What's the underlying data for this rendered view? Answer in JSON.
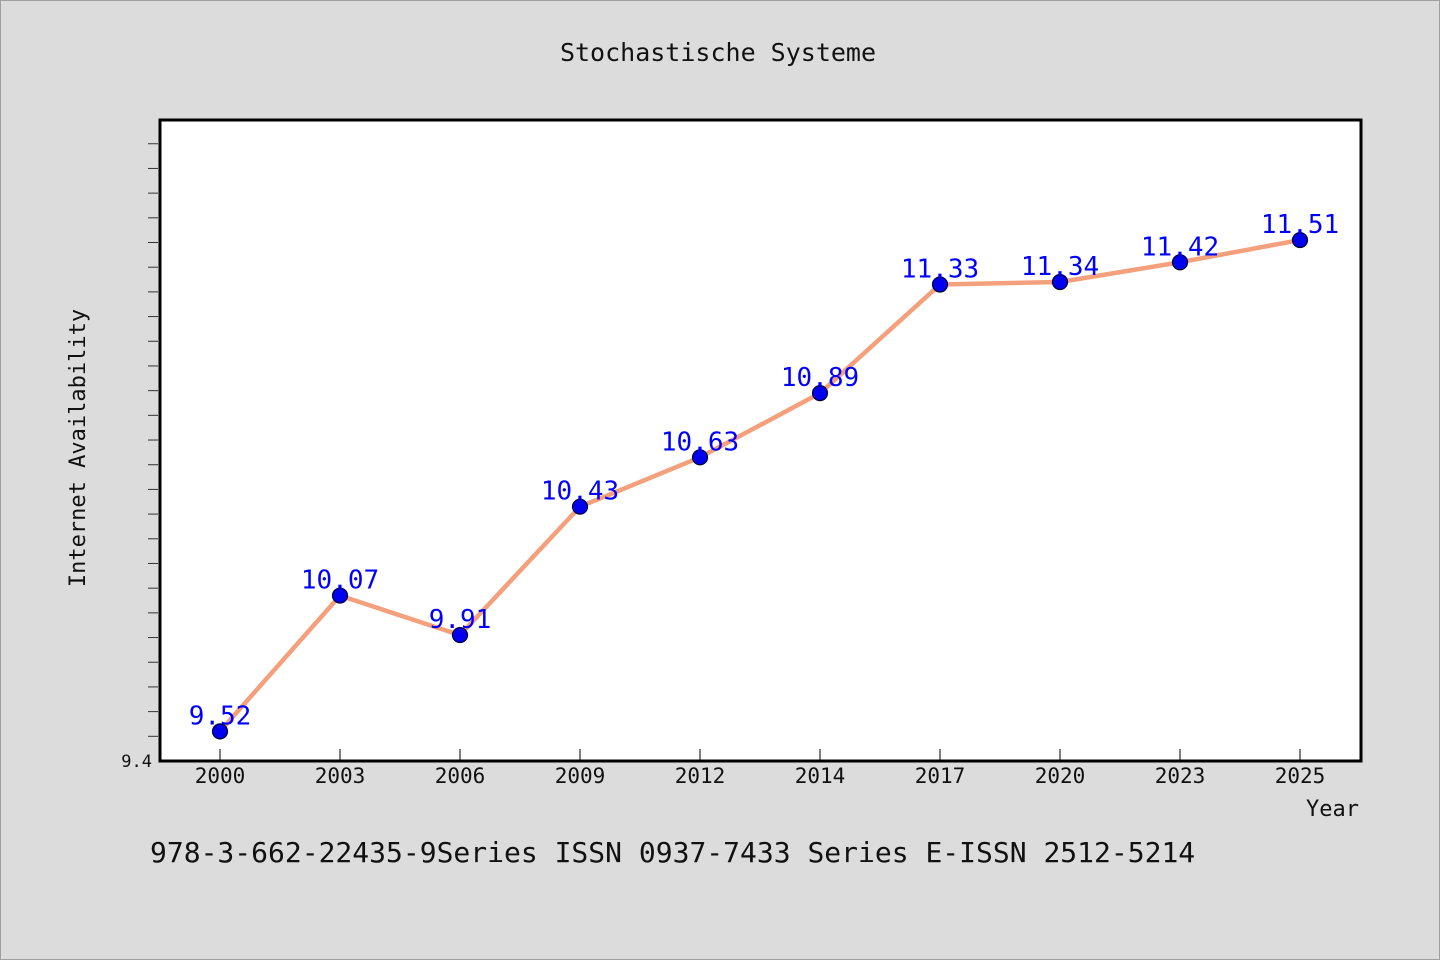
{
  "chart_data": {
    "type": "line",
    "title": "Stochastische Systeme",
    "xlabel": "Year",
    "ylabel": "Internet Availability",
    "categories": [
      "2000",
      "2003",
      "2006",
      "2009",
      "2012",
      "2014",
      "2017",
      "2020",
      "2023",
      "2025"
    ],
    "series": [
      {
        "values": [
          9.52,
          10.07,
          9.91,
          10.43,
          10.63,
          10.89,
          11.33,
          11.34,
          11.42,
          11.51
        ],
        "data_labels": [
          "9.52",
          "10.07",
          "9.91",
          "10.43",
          "10.63",
          "10.89",
          "11.33",
          "11.34",
          "11.42",
          "11.51"
        ]
      }
    ],
    "ylim": [
      9.4,
      12.0
    ],
    "y_tick_labels": [
      "9.4"
    ],
    "grid": false,
    "legend": "none",
    "colors": {
      "line": "#f4a07c",
      "marker_fill": "#0000ee",
      "marker_edge": "#000033",
      "data_label": "#0000ff",
      "plot_background": "#ffffff",
      "page_background": "#dcdcdc"
    }
  },
  "footer": {
    "text": "978-3-662-22435-9Series ISSN 0937-7433 Series E-ISSN 2512-5214"
  }
}
